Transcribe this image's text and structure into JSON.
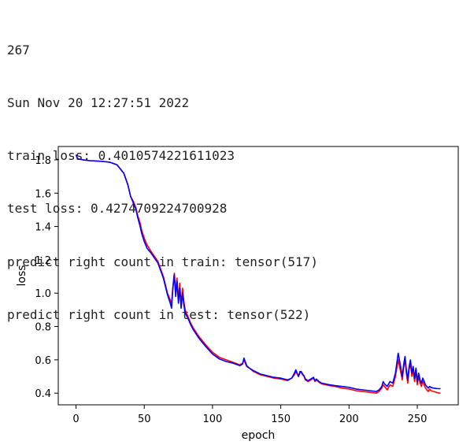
{
  "console": {
    "lines": [
      "267",
      "Sun Nov 20 12:27:51 2022",
      "train loss: 0.4010574221611023",
      "test loss: 0.4274709224700928",
      "predict right count in train: tensor(517)",
      "predict right count in test: tensor(522)"
    ]
  },
  "chart_data": {
    "type": "line",
    "title": "",
    "xlabel": "epoch",
    "ylabel": "loss",
    "xlim": [
      -13,
      280
    ],
    "ylim": [
      0.33,
      1.88
    ],
    "xticks": [
      0,
      50,
      100,
      150,
      200,
      250
    ],
    "yticks": [
      0.4,
      0.6,
      0.8,
      1.0,
      1.2,
      1.4,
      1.6,
      1.8
    ],
    "ytick_labels": [
      "0.4",
      "0.6",
      "0.8",
      "1.0",
      "1.2",
      "1.4",
      "1.6",
      "1.8"
    ],
    "grid": false,
    "series": [
      {
        "color": "#ff0000",
        "x": [
          0,
          1,
          2,
          5,
          10,
          15,
          20,
          25,
          30,
          35,
          38,
          40,
          42,
          44,
          45,
          47,
          48,
          50,
          52,
          55,
          60,
          64,
          67,
          69,
          70,
          71,
          72,
          73,
          74,
          75,
          76,
          77,
          78,
          79,
          80,
          82,
          84,
          86,
          90,
          95,
          100,
          105,
          110,
          115,
          120,
          122,
          123,
          124,
          125,
          127,
          130,
          135,
          140,
          145,
          150,
          155,
          158,
          160,
          161,
          162,
          163,
          164,
          165,
          166,
          167,
          168,
          170,
          172,
          174,
          175,
          176,
          178,
          180,
          183,
          186,
          190,
          195,
          200,
          205,
          210,
          215,
          220,
          222,
          224,
          225,
          226,
          228,
          230,
          232,
          234,
          236,
          238,
          239,
          240,
          241,
          242,
          243,
          244,
          245,
          246,
          247,
          248,
          249,
          250,
          251,
          252,
          253,
          254,
          255,
          256,
          257,
          258,
          259,
          260,
          262,
          264,
          266,
          267
        ],
        "y": [
          1.83,
          1.81,
          1.805,
          1.8,
          1.795,
          1.793,
          1.79,
          1.785,
          1.77,
          1.72,
          1.65,
          1.58,
          1.55,
          1.51,
          1.47,
          1.42,
          1.38,
          1.33,
          1.29,
          1.25,
          1.19,
          1.1,
          1.0,
          0.96,
          0.94,
          1.04,
          1.12,
          1.0,
          1.09,
          0.96,
          1.06,
          0.93,
          1.03,
          0.95,
          0.9,
          0.86,
          0.82,
          0.79,
          0.74,
          0.69,
          0.645,
          0.615,
          0.6,
          0.585,
          0.57,
          0.58,
          0.6,
          0.58,
          0.56,
          0.55,
          0.53,
          0.51,
          0.5,
          0.49,
          0.485,
          0.475,
          0.49,
          0.51,
          0.53,
          0.515,
          0.5,
          0.52,
          0.525,
          0.51,
          0.5,
          0.48,
          0.47,
          0.48,
          0.49,
          0.47,
          0.48,
          0.465,
          0.455,
          0.45,
          0.445,
          0.44,
          0.43,
          0.425,
          0.415,
          0.41,
          0.405,
          0.4,
          0.41,
          0.43,
          0.45,
          0.44,
          0.42,
          0.45,
          0.44,
          0.5,
          0.6,
          0.52,
          0.48,
          0.55,
          0.6,
          0.52,
          0.46,
          0.54,
          0.58,
          0.5,
          0.54,
          0.47,
          0.53,
          0.45,
          0.5,
          0.46,
          0.44,
          0.47,
          0.45,
          0.43,
          0.42,
          0.41,
          0.425,
          0.415,
          0.41,
          0.405,
          0.4,
          0.401
        ]
      },
      {
        "color": "#0000ff",
        "x": [
          0,
          1,
          2,
          5,
          10,
          15,
          20,
          25,
          30,
          35,
          38,
          40,
          42,
          44,
          45,
          47,
          48,
          50,
          52,
          55,
          60,
          64,
          67,
          69,
          70,
          71,
          72,
          73,
          74,
          75,
          76,
          77,
          78,
          79,
          80,
          82,
          84,
          86,
          90,
          95,
          100,
          105,
          110,
          115,
          120,
          122,
          123,
          124,
          125,
          127,
          130,
          135,
          140,
          145,
          150,
          155,
          158,
          160,
          161,
          162,
          163,
          164,
          165,
          166,
          167,
          168,
          170,
          172,
          174,
          175,
          176,
          178,
          180,
          183,
          186,
          190,
          195,
          200,
          205,
          210,
          215,
          220,
          222,
          224,
          225,
          226,
          228,
          230,
          232,
          234,
          236,
          238,
          239,
          240,
          241,
          242,
          243,
          244,
          245,
          246,
          247,
          248,
          249,
          250,
          251,
          252,
          253,
          254,
          255,
          256,
          257,
          258,
          259,
          260,
          262,
          264,
          266,
          267
        ],
        "y": [
          1.83,
          1.81,
          1.805,
          1.8,
          1.795,
          1.793,
          1.79,
          1.785,
          1.77,
          1.72,
          1.65,
          1.58,
          1.54,
          1.5,
          1.46,
          1.4,
          1.36,
          1.31,
          1.27,
          1.24,
          1.18,
          1.09,
          0.99,
          0.94,
          0.91,
          1.03,
          1.11,
          0.98,
          1.07,
          0.94,
          1.03,
          0.91,
          1.0,
          0.93,
          0.88,
          0.85,
          0.81,
          0.78,
          0.73,
          0.68,
          0.635,
          0.605,
          0.59,
          0.58,
          0.565,
          0.575,
          0.61,
          0.59,
          0.565,
          0.55,
          0.535,
          0.515,
          0.505,
          0.495,
          0.49,
          0.48,
          0.49,
          0.52,
          0.54,
          0.52,
          0.5,
          0.53,
          0.53,
          0.515,
          0.505,
          0.485,
          0.475,
          0.485,
          0.495,
          0.475,
          0.485,
          0.47,
          0.46,
          0.455,
          0.45,
          0.445,
          0.44,
          0.435,
          0.425,
          0.42,
          0.415,
          0.41,
          0.42,
          0.44,
          0.47,
          0.455,
          0.44,
          0.47,
          0.46,
          0.52,
          0.64,
          0.55,
          0.5,
          0.57,
          0.62,
          0.54,
          0.48,
          0.56,
          0.6,
          0.52,
          0.56,
          0.49,
          0.55,
          0.47,
          0.52,
          0.48,
          0.46,
          0.49,
          0.47,
          0.45,
          0.44,
          0.43,
          0.44,
          0.435,
          0.43,
          0.428,
          0.427,
          0.427
        ]
      }
    ]
  }
}
